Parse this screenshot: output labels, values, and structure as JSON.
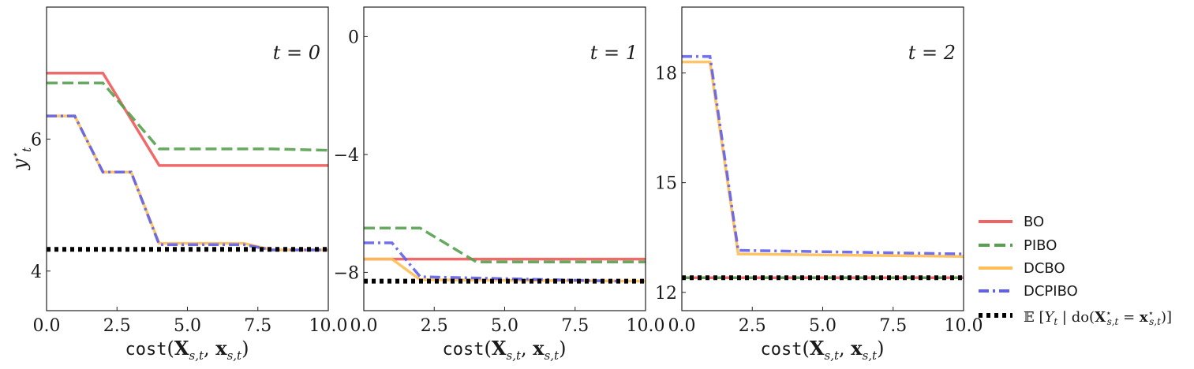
{
  "chart_data": [
    {
      "type": "line",
      "xlim": [
        0,
        10
      ],
      "ylim": [
        3.4,
        8.0
      ],
      "xticks": [
        0,
        2.5,
        5,
        7.5,
        10
      ],
      "xtick_labels": [
        "0.0",
        "2.5",
        "5.0",
        "7.5",
        "10.0"
      ],
      "yticks": [
        4,
        6
      ],
      "ytick_labels": [
        "4",
        "6"
      ],
      "annotation": "t = 0",
      "xlabel": "cost(X_{s,t}, x_{s,t})",
      "ylabel": "y*_t",
      "series": [
        {
          "name": "BO",
          "x": [
            0,
            2,
            4,
            10
          ],
          "y": [
            7.0,
            7.0,
            5.6,
            5.6
          ]
        },
        {
          "name": "PIBO",
          "x": [
            0,
            2,
            4,
            8,
            10
          ],
          "y": [
            6.85,
            6.85,
            5.85,
            5.85,
            5.83
          ]
        },
        {
          "name": "DCBO",
          "x": [
            0,
            1,
            2,
            3,
            4,
            7,
            8,
            10
          ],
          "y": [
            6.35,
            6.35,
            5.5,
            5.5,
            4.42,
            4.42,
            4.32,
            4.32
          ]
        },
        {
          "name": "DCPIBO",
          "x": [
            0,
            1,
            2,
            3,
            4,
            7,
            8,
            10
          ],
          "y": [
            6.35,
            6.35,
            5.5,
            5.5,
            4.4,
            4.4,
            4.32,
            4.32
          ]
        },
        {
          "name": "E[Y_t | do(X*_{s,t} = x*_{s,t})]",
          "x": [
            0,
            10
          ],
          "y": [
            4.33,
            4.33
          ]
        }
      ]
    },
    {
      "type": "line",
      "xlim": [
        0,
        10
      ],
      "ylim": [
        -9.3,
        1.0
      ],
      "xticks": [
        0,
        2.5,
        5,
        7.5,
        10
      ],
      "xtick_labels": [
        "0.0",
        "2.5",
        "5.0",
        "7.5",
        "10.0"
      ],
      "yticks": [
        0,
        -4,
        -8
      ],
      "ytick_labels": [
        "0",
        "−4",
        "−8"
      ],
      "annotation": "t = 1",
      "xlabel": "cost(X_{s,t}, x_{s,t})",
      "series": [
        {
          "name": "BO",
          "x": [
            0,
            10
          ],
          "y": [
            -7.55,
            -7.55
          ]
        },
        {
          "name": "PIBO",
          "x": [
            0,
            2,
            4,
            10
          ],
          "y": [
            -6.5,
            -6.5,
            -7.65,
            -7.65
          ]
        },
        {
          "name": "DCBO",
          "x": [
            0,
            1,
            2,
            10
          ],
          "y": [
            -7.55,
            -7.55,
            -8.25,
            -8.3
          ]
        },
        {
          "name": "DCPIBO",
          "x": [
            0,
            1,
            2,
            9
          ],
          "y": [
            -7.0,
            -7.0,
            -8.15,
            -8.3
          ]
        },
        {
          "name": "E[Y_t | do(X*_{s,t} = x*_{s,t})]",
          "x": [
            0,
            10
          ],
          "y": [
            -8.3,
            -8.3
          ]
        }
      ]
    },
    {
      "type": "line",
      "xlim": [
        0,
        10
      ],
      "ylim": [
        11.5,
        19.8
      ],
      "xticks": [
        0,
        2.5,
        5,
        7.5,
        10
      ],
      "xtick_labels": [
        "0.0",
        "2.5",
        "5.0",
        "7.5",
        "10.0"
      ],
      "yticks": [
        12,
        15,
        18
      ],
      "ytick_labels": [
        "12",
        "15",
        "18"
      ],
      "annotation": "t = 2",
      "xlabel": "cost(X_{s,t}, x_{s,t})",
      "series": [
        {
          "name": "BO",
          "x": [
            0,
            10
          ],
          "y": [
            12.4,
            12.4
          ]
        },
        {
          "name": "PIBO",
          "x": [
            0,
            10
          ],
          "y": [
            12.4,
            12.4
          ]
        },
        {
          "name": "DCBO",
          "x": [
            0,
            1,
            2,
            10
          ],
          "y": [
            18.3,
            18.3,
            13.05,
            12.98
          ]
        },
        {
          "name": "DCPIBO",
          "x": [
            0,
            1,
            2,
            6,
            10
          ],
          "y": [
            18.45,
            18.45,
            13.15,
            13.1,
            13.05
          ]
        },
        {
          "name": "E[Y_t | do(X*_{s,t} = x*_{s,t})]",
          "x": [
            0,
            10
          ],
          "y": [
            12.4,
            12.4
          ]
        }
      ]
    }
  ],
  "legend": {
    "placement": "outside-right",
    "entries": [
      {
        "label": "BO",
        "color": "#f05a5a",
        "style": "solid"
      },
      {
        "label": "PIBO",
        "color": "#55a14f",
        "style": "dashed"
      },
      {
        "label": "DCBO",
        "color": "#ffbe55",
        "style": "solid"
      },
      {
        "label": "DCPIBO",
        "color": "#6060ec",
        "style": "dashdot"
      },
      {
        "label": "E[Y_t | do(X*_{s,t} = x*_{s,t})]",
        "color": "#000000",
        "style": "dotted"
      }
    ]
  }
}
